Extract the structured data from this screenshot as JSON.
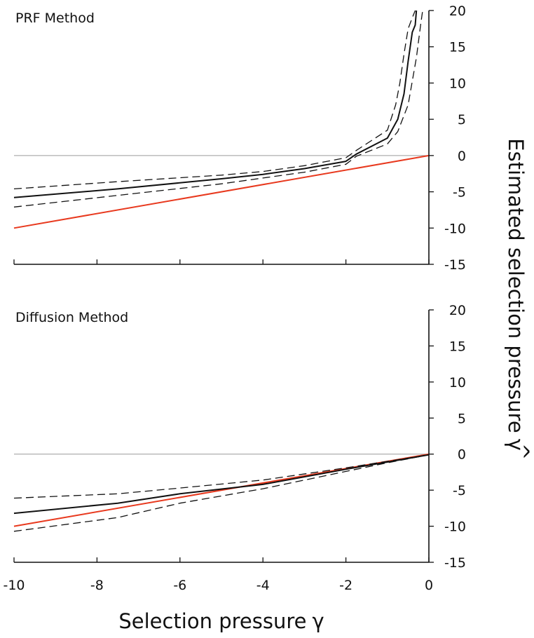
{
  "chart_data": [
    {
      "type": "line",
      "title": "PRF Method",
      "xlabel": "",
      "ylabel": "Estimated selection pressure",
      "xlim": [
        -10,
        0
      ],
      "ylim": [
        -15,
        20
      ],
      "yticks": [
        {
          "value": 20,
          "label": "20"
        },
        {
          "value": 15,
          "label": "15"
        },
        {
          "value": 10,
          "label": "10"
        },
        {
          "value": 5,
          "label": "5"
        },
        {
          "value": 0,
          "label": "0"
        },
        {
          "value": -5,
          "label": "-5"
        },
        {
          "value": -10,
          "label": "-10"
        },
        {
          "value": -15,
          "label": "-15"
        }
      ],
      "series": [
        {
          "name": "estimate",
          "style": "solid",
          "color": "#111111",
          "x": [
            -10,
            -7.5,
            -5,
            -4,
            -3,
            -2,
            -1.75,
            -1,
            -0.75,
            -0.6,
            -0.5,
            -0.4,
            -0.33,
            -0.3
          ],
          "y": [
            -5.8,
            -4.6,
            -3.2,
            -2.6,
            -1.8,
            -0.8,
            0.2,
            2.4,
            5,
            8.5,
            13,
            17,
            18,
            20
          ]
        },
        {
          "name": "upper bound",
          "style": "dashed",
          "color": "#111111",
          "x": [
            -10,
            -7.5,
            -5,
            -4,
            -3,
            -2,
            -1.75,
            -1,
            -0.8,
            -0.7,
            -0.6,
            -0.5,
            -0.4,
            -0.33
          ],
          "y": [
            -4.6,
            -3.6,
            -2.7,
            -2.2,
            -1.4,
            -0.3,
            0.7,
            3.5,
            7,
            10,
            14,
            17.5,
            19,
            20
          ]
        },
        {
          "name": "lower bound",
          "style": "dashed",
          "color": "#111111",
          "x": [
            -10,
            -7.5,
            -5,
            -4,
            -3,
            -2,
            -1.75,
            -1,
            -0.75,
            -0.5,
            -0.3,
            -0.2,
            -0.15
          ],
          "y": [
            -7.1,
            -5.5,
            -3.9,
            -3.1,
            -2.3,
            -1.2,
            -0.1,
            1.6,
            3.3,
            7,
            13.5,
            18,
            20
          ]
        },
        {
          "name": "reference y = x",
          "style": "solid",
          "color": "#e8391e",
          "x": [
            -10,
            0
          ],
          "y": [
            -10,
            0
          ]
        },
        {
          "name": "zero line",
          "style": "solid",
          "color": "#9a9a9a",
          "x": [
            -10,
            0
          ],
          "y": [
            0,
            0
          ]
        }
      ]
    },
    {
      "type": "line",
      "title": "Diffusion Method",
      "xlabel": "Selection pressure",
      "ylabel": "Estimated selection pressure",
      "xlim": [
        -10,
        0
      ],
      "ylim": [
        -15,
        20
      ],
      "xticks": [
        {
          "value": -10,
          "label": "-10"
        },
        {
          "value": -8,
          "label": "-8"
        },
        {
          "value": -6,
          "label": "-6"
        },
        {
          "value": -4,
          "label": "-4"
        },
        {
          "value": -2,
          "label": "-2"
        },
        {
          "value": 0,
          "label": "0"
        }
      ],
      "yticks": [
        {
          "value": 20,
          "label": "20"
        },
        {
          "value": 15,
          "label": "15"
        },
        {
          "value": 10,
          "label": "10"
        },
        {
          "value": 5,
          "label": "5"
        },
        {
          "value": 0,
          "label": "0"
        },
        {
          "value": -5,
          "label": "-5"
        },
        {
          "value": -10,
          "label": "-10"
        },
        {
          "value": -15,
          "label": "-15"
        }
      ],
      "series": [
        {
          "name": "estimate",
          "style": "solid",
          "color": "#111111",
          "x": [
            -10,
            -7.5,
            -6,
            -4,
            -2,
            -1,
            0
          ],
          "y": [
            -8.2,
            -6.8,
            -5.5,
            -4.2,
            -2.1,
            -1.1,
            -0.1
          ]
        },
        {
          "name": "upper bound",
          "style": "dashed",
          "color": "#111111",
          "x": [
            -10,
            -7.5,
            -6,
            -4,
            -2,
            -1,
            0
          ],
          "y": [
            -6.1,
            -5.5,
            -4.7,
            -3.6,
            -1.9,
            -1.0,
            -0.1
          ]
        },
        {
          "name": "lower bound",
          "style": "dashed",
          "color": "#111111",
          "x": [
            -10,
            -7.5,
            -6,
            -4,
            -2,
            -1,
            0
          ],
          "y": [
            -10.7,
            -8.8,
            -6.8,
            -4.8,
            -2.4,
            -1.2,
            -0.1
          ]
        },
        {
          "name": "reference y = x",
          "style": "solid",
          "color": "#e8391e",
          "x": [
            -10,
            0
          ],
          "y": [
            -10,
            0
          ]
        },
        {
          "name": "zero line",
          "style": "solid",
          "color": "#9a9a9a",
          "x": [
            -10,
            0
          ],
          "y": [
            0,
            0
          ]
        }
      ]
    }
  ],
  "labels": {
    "xlabel_text": "Selection pressure",
    "xlabel_symbol": "γ",
    "ylabel_text": "Estimated selection pressure",
    "ylabel_symbol": "γ",
    "ylabel_hat": "^"
  }
}
